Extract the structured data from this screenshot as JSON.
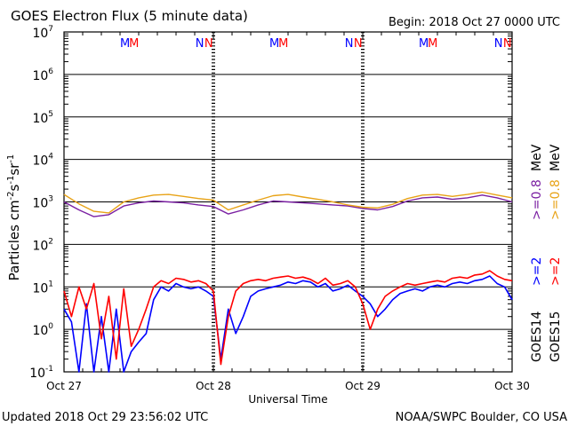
{
  "chart_data": {
    "type": "line",
    "title": "GOES Electron Flux (5 minute data)",
    "begin_label": "Begin: 2018 Oct 27 0000 UTC",
    "xlabel": "Universal Time",
    "ylabel_prefix": "Particles cm",
    "ylabel_exp1": "-2",
    "ylabel_mid1": "s",
    "ylabel_exp2": "-1",
    "ylabel_mid2": "sr",
    "ylabel_exp3": "-1",
    "y_scale": "log",
    "ylim": [
      0.1,
      10000000
    ],
    "y_ticks": [
      {
        "base": "10",
        "exp": "7"
      },
      {
        "base": "10",
        "exp": "6"
      },
      {
        "base": "10",
        "exp": "5"
      },
      {
        "base": "10",
        "exp": "4"
      },
      {
        "base": "10",
        "exp": "3"
      },
      {
        "base": "10",
        "exp": "2"
      },
      {
        "base": "10",
        "exp": "1"
      },
      {
        "base": "10",
        "exp": "0"
      },
      {
        "base": "10",
        "exp": "-1"
      }
    ],
    "x_range_days": [
      "2018-10-27",
      "2018-10-30"
    ],
    "x_ticks": [
      "Oct 27",
      "Oct 28",
      "Oct 29",
      "Oct 30"
    ],
    "reference_line": 1000,
    "markers": [
      {
        "label": "M",
        "series": "GOES14",
        "day": 0.48
      },
      {
        "label": "M",
        "series": "GOES15",
        "day": 0.54
      },
      {
        "label": "N",
        "series": "GOES14",
        "day": 0.98
      },
      {
        "label": "N",
        "series": "GOES15",
        "day": 1.04
      },
      {
        "label": "M",
        "series": "GOES14",
        "day": 1.48
      },
      {
        "label": "M",
        "series": "GOES15",
        "day": 1.54
      },
      {
        "label": "N",
        "series": "GOES14",
        "day": 1.98
      },
      {
        "label": "N",
        "series": "GOES15",
        "day": 2.04
      },
      {
        "label": "M",
        "series": "GOES14",
        "day": 2.48
      },
      {
        "label": "M",
        "series": "GOES15",
        "day": 2.54
      },
      {
        "label": "N",
        "series": "GOES14",
        "day": 2.98
      },
      {
        "label": "N",
        "series": "GOES15",
        "day": 3.04
      }
    ],
    "legend": {
      "placement": "right",
      "columns": [
        {
          "satellite": "GOES14",
          "low": ">=2",
          "low_color": "#0000ff",
          "high": ">=0.8",
          "high_color": "#7a1fa2"
        },
        {
          "satellite": "GOES15",
          "low": ">=2",
          "low_color": "#ff0000",
          "high": ">=0.8",
          "high_color": "#e8a317"
        }
      ],
      "unit": "MeV"
    },
    "series": [
      {
        "satellite": "GOES14",
        "energy": ">=0.8 MeV",
        "color": "#7a1fa2",
        "x": [
          0.0,
          0.1,
          0.2,
          0.3,
          0.4,
          0.5,
          0.6,
          0.7,
          0.8,
          0.9,
          1.0,
          1.1,
          1.2,
          1.3,
          1.4,
          1.5,
          1.6,
          1.7,
          1.8,
          1.9,
          2.0,
          2.1,
          2.2,
          2.3,
          2.4,
          2.5,
          2.6,
          2.7,
          2.8,
          2.9,
          3.0
        ],
        "values": [
          1000,
          650,
          450,
          500,
          800,
          950,
          1050,
          1000,
          950,
          850,
          780,
          520,
          650,
          850,
          1050,
          1000,
          950,
          900,
          850,
          800,
          700,
          650,
          780,
          1050,
          1250,
          1300,
          1150,
          1250,
          1450,
          1250,
          1000
        ]
      },
      {
        "satellite": "GOES15",
        "energy": ">=0.8 MeV",
        "color": "#e8a317",
        "x": [
          0.0,
          0.1,
          0.2,
          0.3,
          0.4,
          0.5,
          0.6,
          0.7,
          0.8,
          0.9,
          1.0,
          1.1,
          1.2,
          1.3,
          1.4,
          1.5,
          1.6,
          1.7,
          1.8,
          1.9,
          2.0,
          2.1,
          2.2,
          2.3,
          2.4,
          2.5,
          2.6,
          2.7,
          2.8,
          2.9,
          3.0
        ],
        "values": [
          1500,
          900,
          600,
          550,
          1000,
          1250,
          1450,
          1500,
          1350,
          1200,
          1100,
          650,
          850,
          1100,
          1400,
          1500,
          1300,
          1150,
          1000,
          850,
          750,
          720,
          880,
          1200,
          1450,
          1500,
          1350,
          1500,
          1700,
          1450,
          1250
        ]
      },
      {
        "satellite": "GOES14",
        "energy": ">=2 MeV",
        "color": "#0000ff",
        "x": [
          0.0,
          0.05,
          0.1,
          0.15,
          0.2,
          0.25,
          0.3,
          0.35,
          0.4,
          0.45,
          0.5,
          0.55,
          0.6,
          0.65,
          0.7,
          0.75,
          0.8,
          0.85,
          0.9,
          0.95,
          1.0,
          1.05,
          1.1,
          1.15,
          1.2,
          1.25,
          1.3,
          1.35,
          1.4,
          1.45,
          1.5,
          1.55,
          1.6,
          1.65,
          1.7,
          1.75,
          1.8,
          1.85,
          1.9,
          1.95,
          2.0,
          2.05,
          2.1,
          2.15,
          2.2,
          2.25,
          2.3,
          2.35,
          2.4,
          2.45,
          2.5,
          2.55,
          2.6,
          2.65,
          2.7,
          2.75,
          2.8,
          2.85,
          2.9,
          2.95,
          3.0
        ],
        "values": [
          3,
          1.5,
          0.1,
          4,
          0.1,
          2,
          0.1,
          3,
          0.1,
          0.3,
          0.5,
          0.8,
          5,
          10,
          8,
          12,
          10,
          9,
          10,
          8,
          6,
          0.2,
          3,
          0.8,
          2,
          6,
          8,
          9,
          10,
          11,
          13,
          12,
          14,
          13,
          10,
          12,
          8,
          9,
          11,
          8,
          6,
          4,
          2,
          3,
          5,
          7,
          8,
          9,
          8,
          10,
          11,
          10,
          12,
          13,
          12,
          14,
          15,
          18,
          12,
          10,
          5
        ]
      },
      {
        "satellite": "GOES15",
        "energy": ">=2 MeV",
        "color": "#ff0000",
        "x": [
          0.0,
          0.05,
          0.1,
          0.15,
          0.2,
          0.25,
          0.3,
          0.35,
          0.4,
          0.45,
          0.5,
          0.55,
          0.6,
          0.65,
          0.7,
          0.75,
          0.8,
          0.85,
          0.9,
          0.95,
          1.0,
          1.05,
          1.1,
          1.15,
          1.2,
          1.25,
          1.3,
          1.35,
          1.4,
          1.45,
          1.5,
          1.55,
          1.6,
          1.65,
          1.7,
          1.75,
          1.8,
          1.85,
          1.9,
          1.95,
          2.0,
          2.05,
          2.1,
          2.15,
          2.2,
          2.25,
          2.3,
          2.35,
          2.4,
          2.45,
          2.5,
          2.55,
          2.6,
          2.65,
          2.7,
          2.75,
          2.8,
          2.85,
          2.9,
          2.95,
          3.0
        ],
        "values": [
          8,
          2,
          10,
          3,
          12,
          0.6,
          6,
          0.2,
          9,
          0.4,
          1,
          3,
          10,
          14,
          12,
          16,
          15,
          13,
          14,
          12,
          8,
          0.15,
          2,
          8,
          12,
          14,
          15,
          14,
          16,
          17,
          18,
          16,
          17,
          15,
          12,
          16,
          11,
          12,
          14,
          10,
          4,
          1,
          3,
          6,
          8,
          10,
          12,
          11,
          12,
          13,
          14,
          13,
          16,
          17,
          16,
          19,
          20,
          24,
          18,
          15,
          14
        ]
      }
    ]
  },
  "footer": {
    "updated": "Updated 2018 Oct 29 23:56:02 UTC",
    "credit": "NOAA/SWPC Boulder, CO USA"
  }
}
